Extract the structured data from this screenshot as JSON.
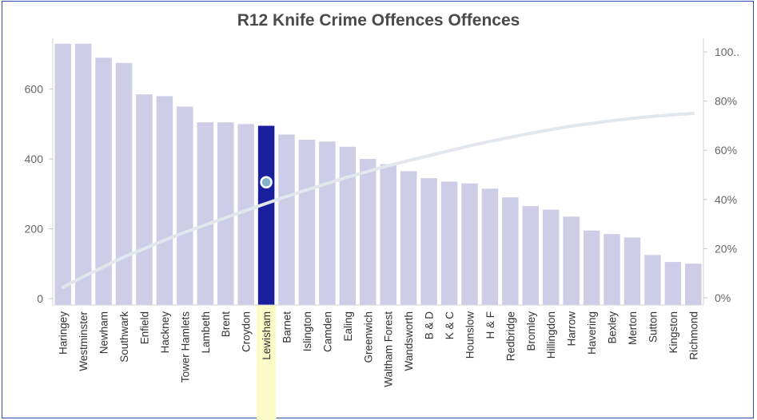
{
  "chart_data": {
    "type": "bar",
    "title": "R12 Knife Crime Offences Offences",
    "categories": [
      "Haringey",
      "Westminster",
      "Newham",
      "Southwark",
      "Enfield",
      "Hackney",
      "Tower Hamlets",
      "Lambeth",
      "Brent",
      "Croydon",
      "Lewisham",
      "Barnet",
      "Islington",
      "Camden",
      "Ealing",
      "Greenwich",
      "Waltham Forest",
      "Wandsworth",
      "B & D",
      "K & C",
      "Hounslow",
      "H & F",
      "Redbridge",
      "Bromley",
      "Hillingdon",
      "Harrow",
      "Havering",
      "Bexley",
      "Merton",
      "Sutton",
      "Kingston",
      "Richmond"
    ],
    "series": [
      {
        "type": "bar",
        "values": [
          730,
          730,
          690,
          675,
          585,
          580,
          550,
          505,
          505,
          500,
          495,
          470,
          455,
          450,
          435,
          400,
          385,
          365,
          345,
          335,
          330,
          315,
          290,
          265,
          255,
          235,
          195,
          185,
          175,
          125,
          105,
          100
        ]
      },
      {
        "type": "line",
        "axis": "right",
        "values": [
          4.3,
          8.6,
          12.6,
          16.6,
          20.0,
          23.4,
          26.7,
          29.6,
          32.6,
          35.5,
          38.4,
          41.2,
          43.9,
          46.5,
          49.1,
          51.4,
          53.7,
          55.8,
          57.8,
          59.8,
          61.8,
          63.6,
          65.3,
          66.9,
          68.4,
          69.8,
          70.9,
          72.0,
          73.0,
          73.8,
          74.4,
          75.0
        ]
      }
    ],
    "highlight_category": "Lewisham",
    "highlight_marker_value": 47,
    "y_left": {
      "ticks": [
        "0",
        "200",
        "400",
        "600"
      ],
      "ylim": [
        0,
        760
      ]
    },
    "y_right": {
      "ticks": [
        "0%",
        "20%",
        "40%",
        "60%",
        "80%",
        "100.."
      ],
      "ylim": [
        0,
        100
      ]
    },
    "grid": false,
    "colors": {
      "bar": "#cdcde8",
      "highlight_bar": "#1a1f9e",
      "highlight_band": "#fbfbc8",
      "line": "#e1e7ed",
      "marker_fill": "#7fb3c9",
      "frame": "#2a4fa8"
    }
  }
}
